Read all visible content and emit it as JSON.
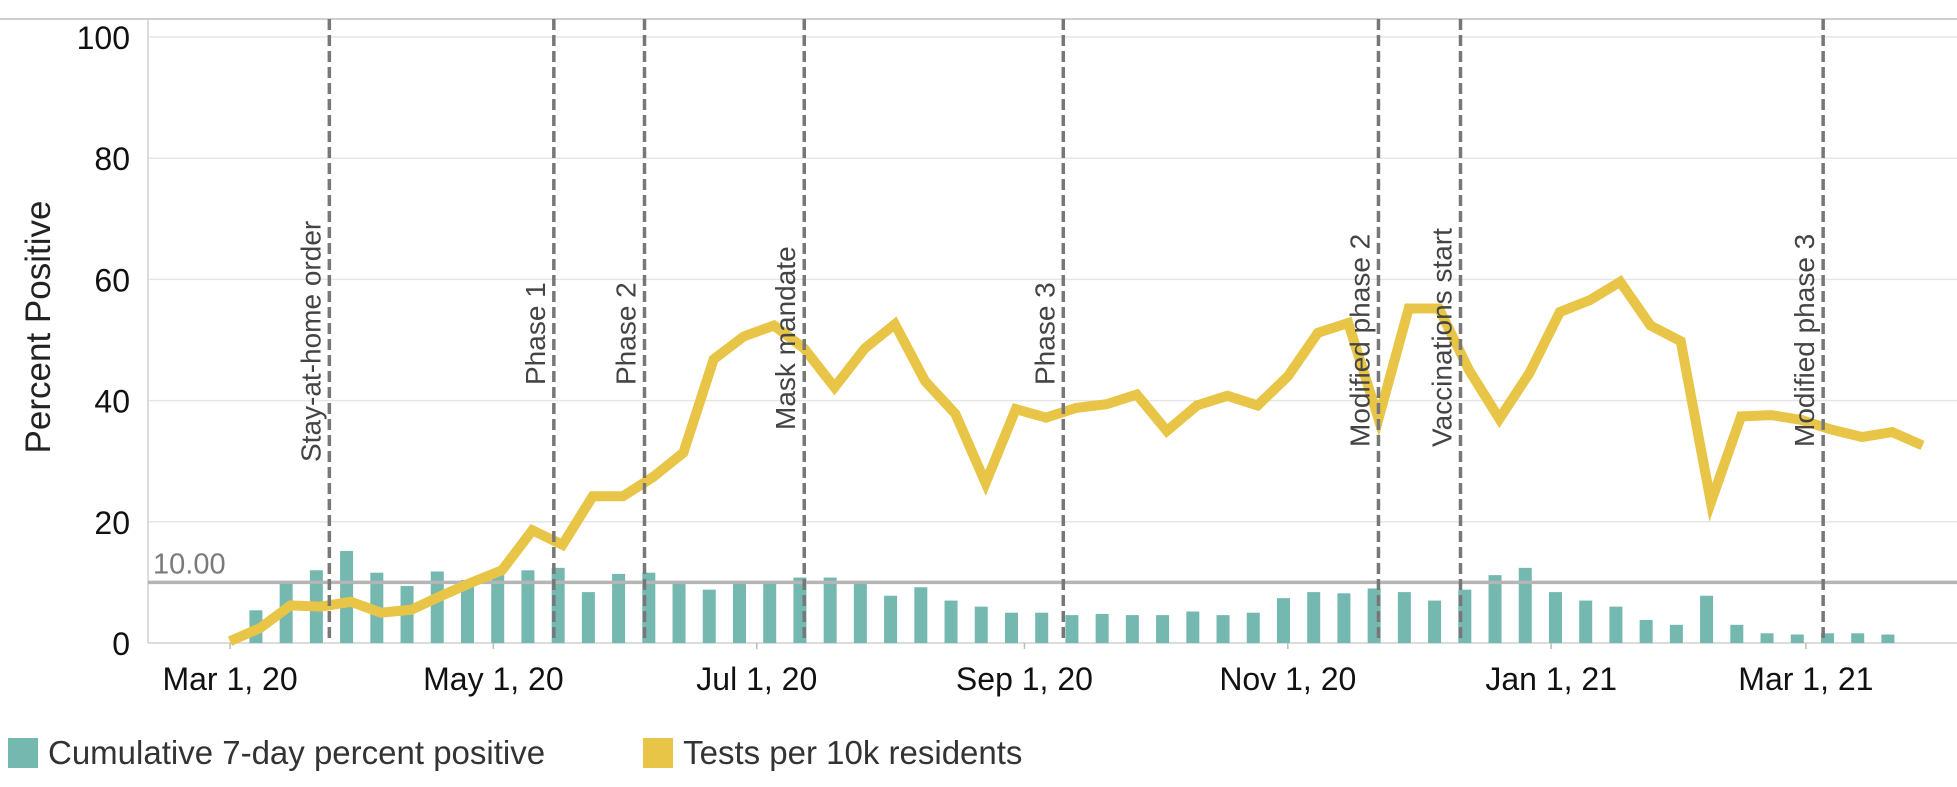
{
  "chart_data": {
    "type": "bar+line",
    "ylabel": "Percent Positive",
    "ylim": [
      0,
      100
    ],
    "yticks": [
      0,
      20,
      40,
      60,
      80,
      100
    ],
    "x_range": [
      "2020-02-11",
      "2021-04-05"
    ],
    "x_ticks": [
      {
        "date": "2020-03-01",
        "label": "Mar 1, 20"
      },
      {
        "date": "2020-05-01",
        "label": "May 1, 20"
      },
      {
        "date": "2020-07-01",
        "label": "Jul 1, 20"
      },
      {
        "date": "2020-09-01",
        "label": "Sep 1, 20"
      },
      {
        "date": "2020-11-01",
        "label": "Nov 1, 20"
      },
      {
        "date": "2021-01-01",
        "label": "Jan 1, 21"
      },
      {
        "date": "2021-03-01",
        "label": "Mar 1, 21"
      }
    ],
    "reference_line": {
      "value": 10,
      "label": "10.00"
    },
    "events": [
      {
        "date": "2020-03-24",
        "label": "Stay-at-home order"
      },
      {
        "date": "2020-05-15",
        "label": "Phase 1"
      },
      {
        "date": "2020-06-05",
        "label": "Phase 2"
      },
      {
        "date": "2020-07-12",
        "label": "Mask mandate"
      },
      {
        "date": "2020-09-10",
        "label": "Phase 3"
      },
      {
        "date": "2020-11-22",
        "label": "Modified phase 2"
      },
      {
        "date": "2020-12-11",
        "label": "Vaccinations start"
      },
      {
        "date": "2021-03-05",
        "label": "Modified phase 3"
      }
    ],
    "series": [
      {
        "name": "Cumulative 7-day percent positive",
        "type": "bar",
        "color": "#74b8b0",
        "points": [
          [
            "2020-03-07",
            5.4
          ],
          [
            "2020-03-14",
            10.0
          ],
          [
            "2020-03-21",
            12.0
          ],
          [
            "2020-03-28",
            15.2
          ],
          [
            "2020-04-04",
            11.6
          ],
          [
            "2020-04-11",
            9.4
          ],
          [
            "2020-04-18",
            11.8
          ],
          [
            "2020-04-25",
            10.4
          ],
          [
            "2020-05-02",
            11.2
          ],
          [
            "2020-05-09",
            12.0
          ],
          [
            "2020-05-16",
            12.4
          ],
          [
            "2020-05-23",
            8.4
          ],
          [
            "2020-05-30",
            11.4
          ],
          [
            "2020-06-06",
            11.6
          ],
          [
            "2020-06-13",
            9.8
          ],
          [
            "2020-06-20",
            8.8
          ],
          [
            "2020-06-27",
            10.2
          ],
          [
            "2020-07-04",
            9.8
          ],
          [
            "2020-07-11",
            10.8
          ],
          [
            "2020-07-18",
            10.8
          ],
          [
            "2020-07-25",
            10.0
          ],
          [
            "2020-08-01",
            7.8
          ],
          [
            "2020-08-08",
            9.2
          ],
          [
            "2020-08-15",
            7.0
          ],
          [
            "2020-08-22",
            6.0
          ],
          [
            "2020-08-29",
            5.0
          ],
          [
            "2020-09-05",
            5.0
          ],
          [
            "2020-09-12",
            4.6
          ],
          [
            "2020-09-19",
            4.8
          ],
          [
            "2020-09-26",
            4.6
          ],
          [
            "2020-10-03",
            4.6
          ],
          [
            "2020-10-10",
            5.2
          ],
          [
            "2020-10-17",
            4.6
          ],
          [
            "2020-10-24",
            5.0
          ],
          [
            "2020-10-31",
            7.4
          ],
          [
            "2020-11-07",
            8.4
          ],
          [
            "2020-11-14",
            8.2
          ],
          [
            "2020-11-21",
            9.0
          ],
          [
            "2020-11-28",
            8.4
          ],
          [
            "2020-12-05",
            7.0
          ],
          [
            "2020-12-12",
            8.8
          ],
          [
            "2020-12-19",
            11.2
          ],
          [
            "2020-12-26",
            12.4
          ],
          [
            "2021-01-02",
            8.4
          ],
          [
            "2021-01-09",
            7.0
          ],
          [
            "2021-01-16",
            6.0
          ],
          [
            "2021-01-23",
            3.8
          ],
          [
            "2021-01-30",
            3.0
          ],
          [
            "2021-02-06",
            7.8
          ],
          [
            "2021-02-13",
            3.0
          ],
          [
            "2021-02-20",
            1.6
          ],
          [
            "2021-02-27",
            1.4
          ],
          [
            "2021-03-06",
            1.6
          ],
          [
            "2021-03-13",
            1.6
          ],
          [
            "2021-03-20",
            1.4
          ]
        ]
      },
      {
        "name": "Tests per 10k residents",
        "type": "line",
        "color": "#e8c547",
        "points": [
          [
            "2020-03-01",
            0.3
          ],
          [
            "2020-03-08",
            2.5
          ],
          [
            "2020-03-15",
            6.2
          ],
          [
            "2020-03-22",
            6.0
          ],
          [
            "2020-03-29",
            6.8
          ],
          [
            "2020-04-05",
            5.0
          ],
          [
            "2020-04-12",
            5.5
          ],
          [
            "2020-04-19",
            7.8
          ],
          [
            "2020-04-26",
            10.0
          ],
          [
            "2020-05-03",
            12.0
          ],
          [
            "2020-05-10",
            18.6
          ],
          [
            "2020-05-17",
            16.2
          ],
          [
            "2020-05-24",
            24.2
          ],
          [
            "2020-05-31",
            24.2
          ],
          [
            "2020-06-07",
            27.4
          ],
          [
            "2020-06-14",
            31.4
          ],
          [
            "2020-06-21",
            46.8
          ],
          [
            "2020-06-28",
            50.6
          ],
          [
            "2020-07-05",
            52.4
          ],
          [
            "2020-07-12",
            48.6
          ],
          [
            "2020-07-19",
            42.2
          ],
          [
            "2020-07-26",
            48.6
          ],
          [
            "2020-08-02",
            52.6
          ],
          [
            "2020-08-09",
            43.2
          ],
          [
            "2020-08-16",
            37.8
          ],
          [
            "2020-08-23",
            26.4
          ],
          [
            "2020-08-30",
            38.6
          ],
          [
            "2020-09-06",
            37.2
          ],
          [
            "2020-09-13",
            38.8
          ],
          [
            "2020-09-20",
            39.4
          ],
          [
            "2020-09-27",
            41.0
          ],
          [
            "2020-10-04",
            35.0
          ],
          [
            "2020-10-11",
            39.2
          ],
          [
            "2020-10-18",
            40.8
          ],
          [
            "2020-10-25",
            39.2
          ],
          [
            "2020-11-01",
            44.0
          ],
          [
            "2020-11-08",
            51.2
          ],
          [
            "2020-11-15",
            52.8
          ],
          [
            "2020-11-22",
            37.0
          ],
          [
            "2020-11-29",
            55.2
          ],
          [
            "2020-12-06",
            55.2
          ],
          [
            "2020-12-13",
            45.0
          ],
          [
            "2020-12-20",
            37.0
          ],
          [
            "2020-12-27",
            44.6
          ],
          [
            "2021-01-03",
            54.6
          ],
          [
            "2021-01-10",
            56.6
          ],
          [
            "2021-01-17",
            59.6
          ],
          [
            "2021-01-24",
            52.4
          ],
          [
            "2021-01-31",
            49.8
          ],
          [
            "2021-02-07",
            23.2
          ],
          [
            "2021-02-14",
            37.4
          ],
          [
            "2021-02-21",
            37.6
          ],
          [
            "2021-02-28",
            36.8
          ],
          [
            "2021-03-07",
            35.2
          ],
          [
            "2021-03-14",
            34.0
          ],
          [
            "2021-03-21",
            34.8
          ],
          [
            "2021-03-28",
            32.6
          ]
        ]
      }
    ]
  }
}
